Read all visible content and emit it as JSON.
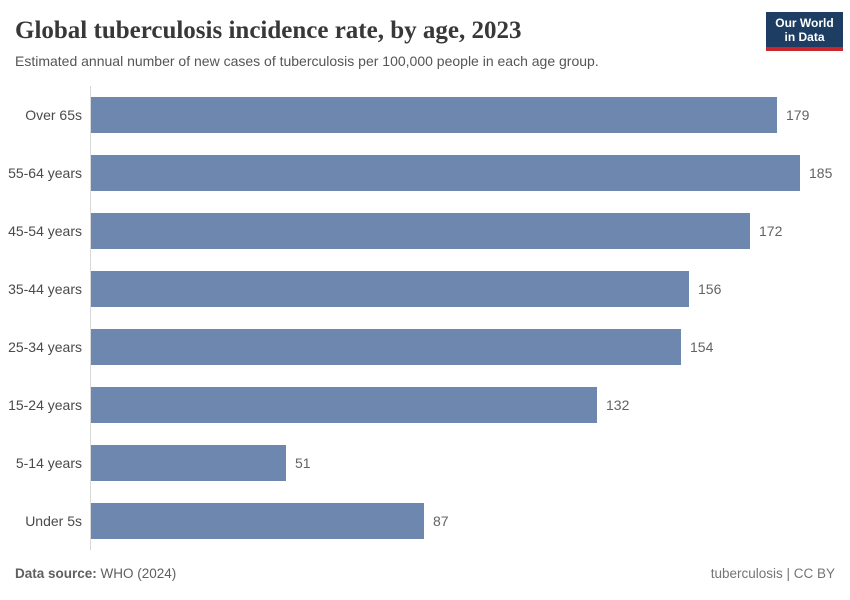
{
  "header": {
    "title": "Global tuberculosis incidence rate, by age, 2023",
    "subtitle": "Estimated annual number of new cases of tuberculosis per 100,000 people in each age group.",
    "logo": {
      "line1": "Our World",
      "line2": "in Data",
      "navy_color": "#1d3d63",
      "red_color": "#c9262e"
    }
  },
  "chart_data": {
    "type": "bar",
    "orientation": "horizontal",
    "title": "Global tuberculosis incidence rate, by age, 2023",
    "xlabel": "",
    "ylabel": "",
    "categories": [
      "Over 65s",
      "55-64 years",
      "45-54 years",
      "35-44 years",
      "25-34 years",
      "15-24 years",
      "5-14 years",
      "Under 5s"
    ],
    "values": [
      179,
      185,
      172,
      156,
      154,
      132,
      51,
      87
    ],
    "xlim": [
      0,
      185
    ],
    "grid": false,
    "legend": "none",
    "value_labels": true,
    "bar_color": "#6e87ae",
    "axis_line_color": "#d9d9d9"
  },
  "footer": {
    "source_label": "Data source:",
    "source_value": " WHO (2024)",
    "license": "tuberculosis | CC BY"
  }
}
